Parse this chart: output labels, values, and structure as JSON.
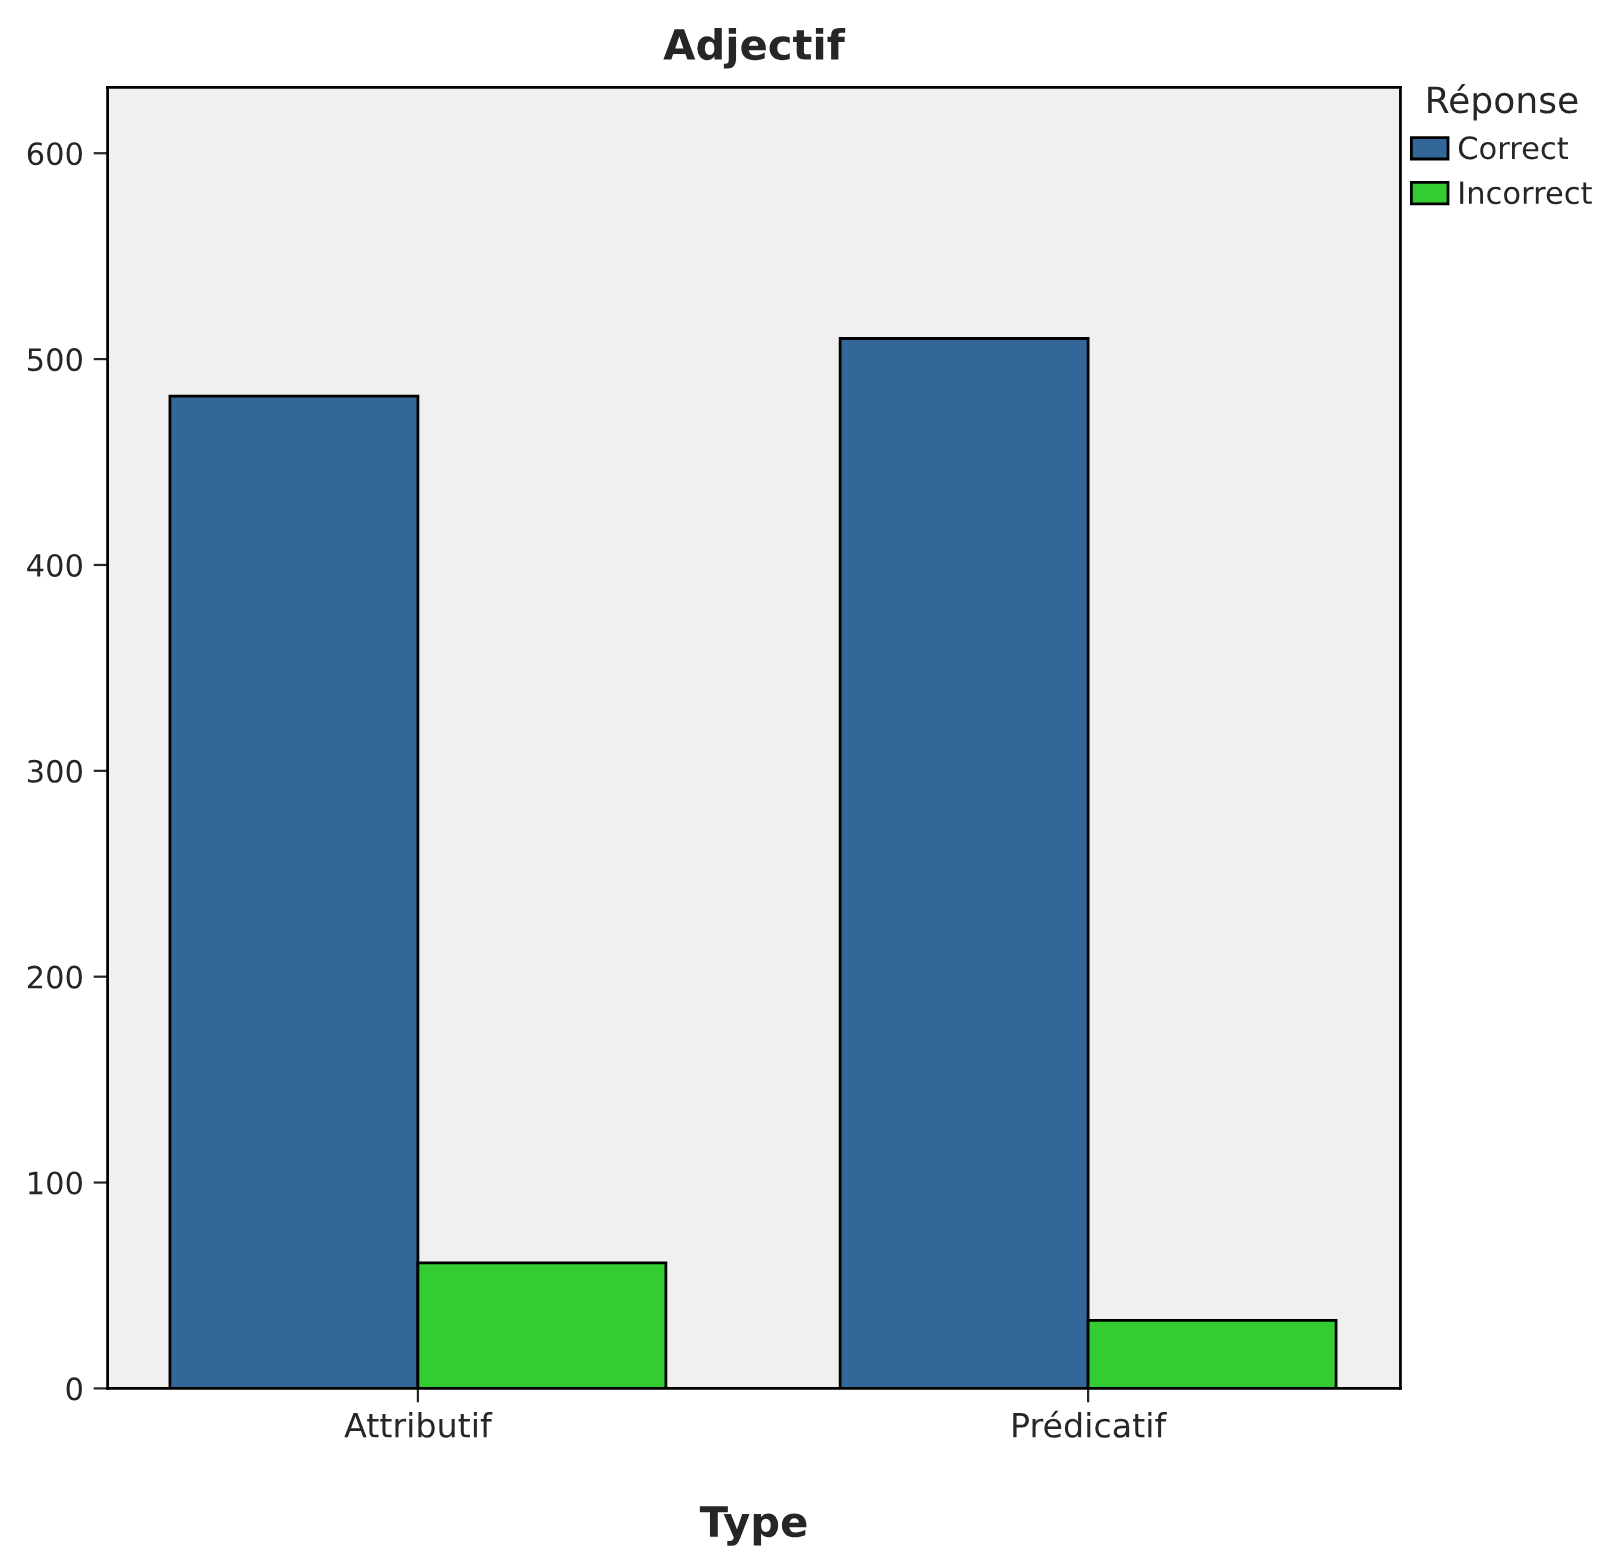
{
  "chart_data": {
    "type": "bar",
    "title": "Adjectif",
    "xlabel": "Type",
    "legend_title": "Réponse",
    "categories": [
      "Attributif",
      "Prédicatif"
    ],
    "series": [
      {
        "name": "Correct",
        "color": "#336699",
        "values": [
          482,
          510
        ]
      },
      {
        "name": "Incorrect",
        "color": "#33cc33",
        "values": [
          61,
          33
        ]
      }
    ],
    "ylim": [
      0,
      632
    ],
    "yticks": [
      0,
      100,
      200,
      300,
      400,
      500,
      600
    ],
    "grid": false,
    "legend": "top right"
  }
}
